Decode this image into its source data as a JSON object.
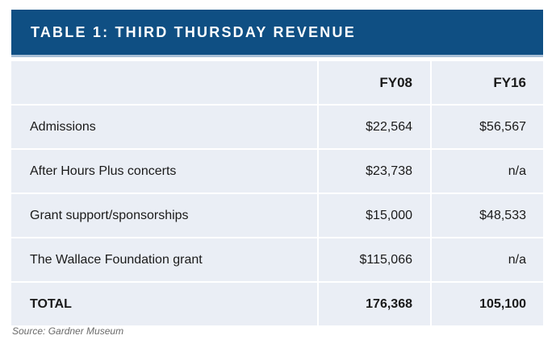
{
  "title": "TABLE 1: THIRD THURSDAY REVENUE",
  "columns": [
    "",
    "FY08",
    "FY16"
  ],
  "rows": [
    {
      "label": "Admissions",
      "fy08": "$22,564",
      "fy16": "$56,567"
    },
    {
      "label": "After Hours Plus concerts",
      "fy08": "$23,738",
      "fy16": "n/a"
    },
    {
      "label": "Grant support/sponsorships",
      "fy08": "$15,000",
      "fy16": "$48,533"
    },
    {
      "label": "The Wallace Foundation grant",
      "fy08": "$115,066",
      "fy16": "n/a"
    }
  ],
  "total": {
    "label": "TOTAL",
    "fy08": "176,368",
    "fy16": "105,100"
  },
  "source": "Source: Gardner Museum",
  "colors": {
    "header_bg": "#0f4f83",
    "row_bg": "#eaeef5",
    "header_text": "#ffffff"
  }
}
